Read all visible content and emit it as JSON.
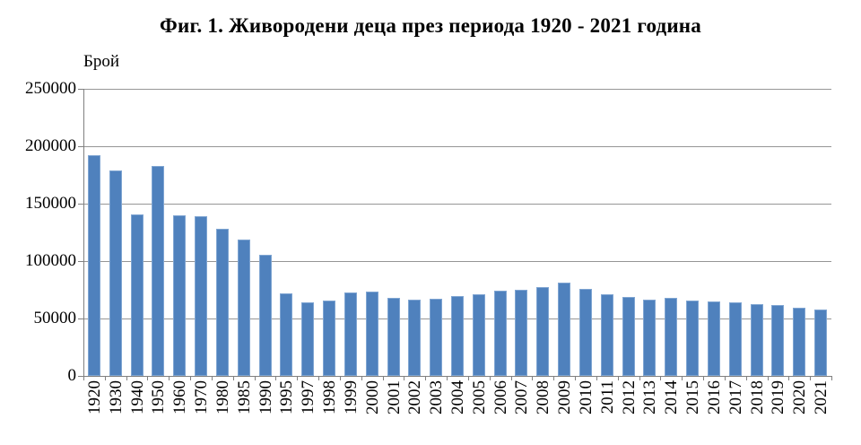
{
  "chart_data": {
    "type": "bar",
    "title": "Фиг. 1. Живородени деца през периода 1920 - 2021 година",
    "ylabel": "Брой",
    "xlabel": "",
    "categories": [
      "1920",
      "1930",
      "1940",
      "1950",
      "1960",
      "1970",
      "1980",
      "1985",
      "1990",
      "1995",
      "1997",
      "1998",
      "1999",
      "2000",
      "2001",
      "2002",
      "2003",
      "2004",
      "2005",
      "2006",
      "2007",
      "2008",
      "2009",
      "2010",
      "2011",
      "2012",
      "2013",
      "2014",
      "2015",
      "2016",
      "2017",
      "2018",
      "2019",
      "2020",
      "2021"
    ],
    "values": [
      192000,
      179000,
      141000,
      182500,
      140000,
      138700,
      128200,
      119000,
      105200,
      72000,
      64100,
      65400,
      72300,
      73700,
      68200,
      66500,
      67400,
      69900,
      71100,
      74000,
      75300,
      77700,
      81000,
      75500,
      70800,
      69100,
      66600,
      67600,
      66000,
      65000,
      64000,
      62200,
      61500,
      59100,
      58200
    ],
    "ylim": [
      0,
      250000
    ],
    "yticks": [
      0,
      50000,
      100000,
      150000,
      200000,
      250000
    ],
    "ytick_labels": [
      "0",
      "50000",
      "100000",
      "150000",
      "200000",
      "250000"
    ],
    "grid": true,
    "legend": false,
    "x_label_rotation_deg": 90,
    "colors": {
      "bar_fill": "#4f81bd",
      "bar_border": "#7fa5d2",
      "gridline": "#969696",
      "axis": "#808080",
      "text": "#000000",
      "background": "#ffffff"
    }
  }
}
